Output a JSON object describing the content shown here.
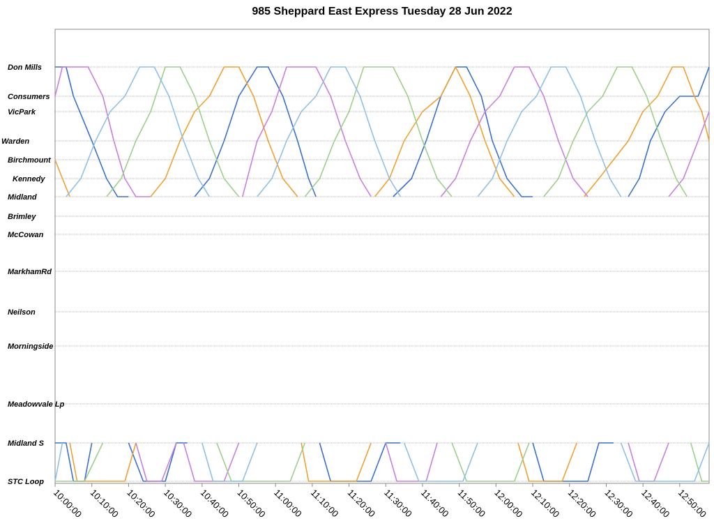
{
  "chart_data": {
    "type": "line",
    "title": "985 Sheppard East Express Tuesday 28 Jun 2022",
    "xlabel": "",
    "ylabel": "",
    "xlim": [
      "10:00:00",
      "12:58:00"
    ],
    "x_ticks": [
      "10:00:00",
      "10:10:00",
      "10:20:00",
      "10:30:00",
      "10:40:00",
      "10:50:00",
      "11:00:00",
      "11:10:00",
      "11:20:00",
      "11:30:00",
      "11:40:00",
      "11:50:00",
      "12:00:00",
      "12:10:00",
      "12:20:00",
      "12:30:00",
      "12:40:00",
      "12:50:00"
    ],
    "stops": [
      "Don Mills",
      "Consumers",
      "VicPark",
      "Warden",
      "Birchmount",
      "Kennedy",
      "Midland",
      "Brimley",
      "McCowan",
      "MarkhamRd",
      "Neilson",
      "Morningside",
      "Meadowvale Lp",
      "Midland S",
      "STC Loop"
    ],
    "grid": "horizontal at each stop",
    "legend": "none",
    "colors": {
      "blue": "#3a6fd0",
      "orange": "#f0a030",
      "purple": "#c77fe0",
      "green": "#9ccf8a",
      "lightblue": "#8fbfe6"
    },
    "series": [
      {
        "color": "blue",
        "trips": [
          {
            "times": [
              "10:00",
              "10:03",
              "10:05",
              "10:10",
              "10:14",
              "10:17",
              "10:20"
            ],
            "stops": [
              "Don Mills",
              "Don Mills",
              "Consumers",
              "Warden",
              "Kennedy",
              "Midland",
              "Midland"
            ]
          },
          {
            "times": [
              "10:00",
              "10:03",
              "10:05",
              "10:08",
              "10:10"
            ],
            "stops": [
              "Midland S",
              "Midland S",
              "STC Loop",
              "STC Loop",
              "Midland S"
            ]
          },
          {
            "times": [
              "10:20",
              "10:24",
              "10:28",
              "10:30",
              "10:33",
              "10:36"
            ],
            "stops": [
              "Midland S",
              "STC Loop",
              "STC Loop",
              "STC Loop",
              "Midland S",
              "Midland S"
            ]
          },
          {
            "times": [
              "10:38",
              "10:42",
              "10:46",
              "10:50",
              "10:55",
              "10:58",
              "11:02",
              "11:06",
              "11:09",
              "11:11"
            ],
            "stops": [
              "Midland",
              "Kennedy",
              "Warden",
              "Consumers",
              "Don Mills",
              "Don Mills",
              "Consumers",
              "Warden",
              "Kennedy",
              "Midland"
            ]
          },
          {
            "times": [
              "11:12",
              "11:15",
              "11:20",
              "11:26",
              "11:30",
              "11:34"
            ],
            "stops": [
              "Midland S",
              "STC Loop",
              "STC Loop",
              "STC Loop",
              "Midland S",
              "Midland S"
            ]
          },
          {
            "times": [
              "11:32",
              "11:37",
              "11:41",
              "11:45",
              "11:49",
              "11:52",
              "11:56",
              "11:59",
              "12:03",
              "12:07",
              "12:10"
            ],
            "stops": [
              "Midland",
              "Kennedy",
              "Warden",
              "Consumers",
              "Don Mills",
              "Don Mills",
              "Consumers",
              "Warden",
              "Kennedy",
              "Midland",
              "Midland"
            ]
          },
          {
            "times": [
              "12:10",
              "12:13",
              "12:17",
              "12:21",
              "12:25",
              "12:28",
              "12:32"
            ],
            "stops": [
              "Midland S",
              "STC Loop",
              "STC Loop",
              "STC Loop",
              "STC Loop",
              "Midland S",
              "Midland S"
            ]
          },
          {
            "times": [
              "12:36",
              "12:39",
              "12:42",
              "12:46",
              "12:50",
              "12:55",
              "12:58"
            ],
            "stops": [
              "Midland",
              "Kennedy",
              "Warden",
              "VicPark",
              "Consumers",
              "Consumers",
              "Don Mills"
            ]
          }
        ]
      },
      {
        "color": "orange",
        "trips": [
          {
            "times": [
              "10:00",
              "10:02",
              "10:04"
            ],
            "stops": [
              "Birchmount",
              "Kennedy",
              "Midland"
            ]
          },
          {
            "times": [
              "10:04",
              "10:06",
              "10:09",
              "10:14",
              "10:19",
              "10:22"
            ],
            "stops": [
              "Midland S",
              "STC Loop",
              "STC Loop",
              "STC Loop",
              "STC Loop",
              "Midland S"
            ]
          },
          {
            "times": [
              "10:26",
              "10:30",
              "10:34",
              "10:38",
              "10:42",
              "10:46",
              "10:50",
              "10:54",
              "10:58",
              "11:02",
              "11:06"
            ],
            "stops": [
              "Midland",
              "Kennedy",
              "Warden",
              "VicPark",
              "Consumers",
              "Don Mills",
              "Don Mills",
              "Consumers",
              "Warden",
              "Kennedy",
              "Midland"
            ]
          },
          {
            "times": [
              "11:07",
              "11:09",
              "11:12",
              "11:17",
              "11:22",
              "11:26"
            ],
            "stops": [
              "Midland S",
              "STC Loop",
              "STC Loop",
              "STC Loop",
              "STC Loop",
              "Midland S"
            ]
          },
          {
            "times": [
              "11:27",
              "11:31",
              "11:35",
              "11:40",
              "11:45",
              "11:49",
              "11:53",
              "11:57",
              "12:01",
              "12:05"
            ],
            "stops": [
              "Midland",
              "Kennedy",
              "Warden",
              "VicPark",
              "Consumers",
              "Don Mills",
              "Consumers",
              "Warden",
              "Kennedy",
              "Midland"
            ]
          },
          {
            "times": [
              "12:06",
              "12:09",
              "12:14",
              "12:18",
              "12:22"
            ],
            "stops": [
              "Midland S",
              "STC Loop",
              "STC Loop",
              "STC Loop",
              "Midland S"
            ]
          },
          {
            "times": [
              "12:24",
              "12:28",
              "12:32",
              "12:36",
              "12:40",
              "12:44",
              "12:48",
              "12:51",
              "12:54",
              "12:56",
              "12:58"
            ],
            "stops": [
              "Midland",
              "Kennedy",
              "Birchmount",
              "Warden",
              "VicPark",
              "Consumers",
              "Don Mills",
              "Don Mills",
              "Consumers",
              "VicPark",
              "Warden"
            ]
          }
        ]
      },
      {
        "color": "purple",
        "trips": [
          {
            "times": [
              "10:00",
              "10:02",
              "10:05",
              "10:09",
              "10:13",
              "10:16",
              "10:19",
              "10:22",
              "10:26"
            ],
            "stops": [
              "Consumers",
              "Don Mills",
              "Don Mills",
              "Don Mills",
              "Consumers",
              "Warden",
              "Kennedy",
              "Midland",
              "Midland"
            ]
          },
          {
            "times": [
              "10:22",
              "10:25",
              "10:29",
              "10:33"
            ],
            "stops": [
              "Midland S",
              "STC Loop",
              "STC Loop",
              "Midland S"
            ]
          },
          {
            "times": [
              "10:35",
              "10:38",
              "10:42",
              "10:46",
              "10:50"
            ],
            "stops": [
              "Midland S",
              "STC Loop",
              "STC Loop",
              "STC Loop",
              "Midland S"
            ]
          },
          {
            "times": [
              "10:51",
              "10:55",
              "10:59",
              "11:03",
              "11:07",
              "11:11",
              "11:15"
            ],
            "stops": [
              "Midland",
              "Warden",
              "VicPark",
              "Don Mills",
              "Don Mills",
              "Don Mills",
              "Consumers"
            ]
          },
          {
            "times": [
              "11:15",
              "11:19",
              "11:23",
              "11:26"
            ],
            "stops": [
              "Consumers",
              "Warden",
              "Kennedy",
              "Midland"
            ]
          },
          {
            "times": [
              "11:30",
              "11:33",
              "11:37",
              "11:41",
              "11:44"
            ],
            "stops": [
              "Midland S",
              "STC Loop",
              "STC Loop",
              "STC Loop",
              "Midland S"
            ]
          },
          {
            "times": [
              "11:45",
              "11:49",
              "11:53",
              "11:57",
              "12:01",
              "12:05",
              "12:09",
              "12:13",
              "12:17",
              "12:21",
              "12:25"
            ],
            "stops": [
              "Midland",
              "Kennedy",
              "Warden",
              "VicPark",
              "Consumers",
              "Don Mills",
              "Don Mills",
              "Consumers",
              "Warden",
              "Kennedy",
              "Midland"
            ]
          },
          {
            "times": [
              "12:36",
              "12:39",
              "12:43",
              "12:47"
            ],
            "stops": [
              "Midland S",
              "STC Loop",
              "STC Loop",
              "Midland S"
            ]
          },
          {
            "times": [
              "12:47",
              "12:51",
              "12:55",
              "12:58"
            ],
            "stops": [
              "Midland",
              "Kennedy",
              "Warden",
              "VicPark"
            ]
          }
        ]
      },
      {
        "color": "green",
        "trips": [
          {
            "times": [
              "10:00",
              "10:04",
              "10:08",
              "10:13"
            ],
            "stops": [
              "STC Loop",
              "STC Loop",
              "STC Loop",
              "Midland S"
            ]
          },
          {
            "times": [
              "10:14",
              "10:18",
              "10:22",
              "10:26",
              "10:30",
              "10:34",
              "10:38",
              "10:42",
              "10:46",
              "10:50"
            ],
            "stops": [
              "Midland",
              "Kennedy",
              "Warden",
              "VicPark",
              "Don Mills",
              "Don Mills",
              "Consumers",
              "Warden",
              "Kennedy",
              "Midland"
            ]
          },
          {
            "times": [
              "10:44",
              "10:48",
              "10:52",
              "10:56",
              "11:00",
              "11:04",
              "11:08"
            ],
            "stops": [
              "Midland S",
              "STC Loop",
              "STC Loop",
              "STC Loop",
              "STC Loop",
              "STC Loop",
              "Midland S"
            ]
          },
          {
            "times": [
              "11:08",
              "11:12",
              "11:16",
              "11:20",
              "11:24",
              "11:28",
              "11:32",
              "11:36",
              "11:40",
              "11:44",
              "11:48"
            ],
            "stops": [
              "Midland",
              "Kennedy",
              "Warden",
              "VicPark",
              "Don Mills",
              "Don Mills",
              "Don Mills",
              "Consumers",
              "Warden",
              "Kennedy",
              "Midland"
            ]
          },
          {
            "times": [
              "11:48",
              "11:52",
              "11:57",
              "12:01",
              "12:05",
              "12:09"
            ],
            "stops": [
              "Midland S",
              "STC Loop",
              "STC Loop",
              "STC Loop",
              "STC Loop",
              "Midland S"
            ]
          },
          {
            "times": [
              "12:13",
              "12:17",
              "12:21",
              "12:25",
              "12:29",
              "12:33",
              "12:37",
              "12:41",
              "12:45",
              "12:49",
              "12:52"
            ],
            "stops": [
              "Midland",
              "Kennedy",
              "Warden",
              "VicPark",
              "Consumers",
              "Don Mills",
              "Don Mills",
              "Consumers",
              "Warden",
              "Kennedy",
              "Midland"
            ]
          },
          {
            "times": [
              "12:53",
              "12:56",
              "12:58"
            ],
            "stops": [
              "Midland S",
              "STC Loop",
              "STC Loop"
            ]
          }
        ]
      },
      {
        "color": "lightblue",
        "trips": [
          {
            "times": [
              "10:00",
              "10:02"
            ],
            "stops": [
              "STC Loop",
              "Midland S"
            ]
          },
          {
            "times": [
              "10:03",
              "10:07",
              "10:11",
              "10:15",
              "10:19",
              "10:23",
              "10:27",
              "10:31",
              "10:35",
              "10:39",
              "10:42"
            ],
            "stops": [
              "Midland",
              "Kennedy",
              "Warden",
              "VicPark",
              "Consumers",
              "Don Mills",
              "Don Mills",
              "Consumers",
              "Warden",
              "Kennedy",
              "Midland"
            ]
          },
          {
            "times": [
              "10:40",
              "10:43",
              "10:47",
              "10:51",
              "10:55"
            ],
            "stops": [
              "Midland S",
              "STC Loop",
              "STC Loop",
              "STC Loop",
              "Midland S"
            ]
          },
          {
            "times": [
              "10:55",
              "10:59",
              "11:03",
              "11:07",
              "11:11",
              "11:15",
              "11:19",
              "11:23",
              "11:27",
              "11:31",
              "11:34"
            ],
            "stops": [
              "Midland",
              "Kennedy",
              "Warden",
              "VicPark",
              "Consumers",
              "Don Mills",
              "Don Mills",
              "Consumers",
              "Warden",
              "Kennedy",
              "Midland"
            ]
          },
          {
            "times": [
              "11:35",
              "11:39",
              "11:43",
              "11:47",
              "11:51",
              "11:55"
            ],
            "stops": [
              "Midland S",
              "STC Loop",
              "STC Loop",
              "STC Loop",
              "STC Loop",
              "Midland S"
            ]
          },
          {
            "times": [
              "11:55",
              "11:59",
              "12:03",
              "12:07",
              "12:11",
              "12:15",
              "12:19",
              "12:23",
              "12:27",
              "12:31",
              "12:34"
            ],
            "stops": [
              "Midland",
              "Kennedy",
              "Warden",
              "VicPark",
              "Consumers",
              "Don Mills",
              "Don Mills",
              "Consumers",
              "Warden",
              "Kennedy",
              "Midland"
            ]
          },
          {
            "times": [
              "12:34",
              "12:38",
              "12:42",
              "12:46",
              "12:50",
              "12:54",
              "12:58"
            ],
            "stops": [
              "Midland S",
              "STC Loop",
              "STC Loop",
              "STC Loop",
              "STC Loop",
              "STC Loop",
              "Midland S"
            ]
          }
        ]
      }
    ]
  }
}
